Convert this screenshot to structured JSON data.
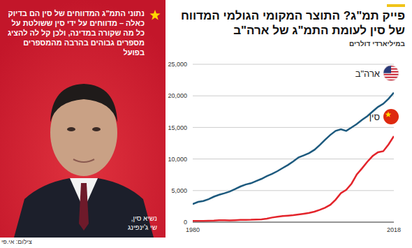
{
  "chart_data": {
    "type": "line",
    "title": "פייק תמ\"ג? התוצר המקומי הגולמי המדווח של סין לעומת התמ\"ג של ארה\"ב",
    "subtitle": "במיליארדי דולרים",
    "x": [
      1980,
      1981,
      1982,
      1983,
      1984,
      1985,
      1986,
      1987,
      1988,
      1989,
      1990,
      1991,
      1992,
      1993,
      1994,
      1995,
      1996,
      1997,
      1998,
      1999,
      2000,
      2001,
      2002,
      2003,
      2004,
      2005,
      2006,
      2007,
      2008,
      2009,
      2010,
      2011,
      2012,
      2013,
      2014,
      2015,
      2016,
      2017,
      2018
    ],
    "series": [
      {
        "name": "ארה\"ב",
        "color": "#1d5a7e",
        "values": [
          2857,
          3207,
          3343,
          3634,
          4037,
          4339,
          4579,
          4855,
          5236,
          5641,
          5963,
          6158,
          6520,
          6858,
          7287,
          7639,
          8073,
          8577,
          9062,
          9631,
          10252,
          10581,
          10936,
          11458,
          12213,
          13036,
          13814,
          14451,
          14712,
          14448,
          14992,
          15542,
          16197,
          16784,
          17527,
          18238,
          18745,
          19543,
          20500
        ]
      },
      {
        "name": "סין",
        "color": "#e3242b",
        "values": [
          191,
          196,
          205,
          230,
          260,
          309,
          300,
          273,
          312,
          348,
          361,
          383,
          427,
          445,
          564,
          734,
          864,
          962,
          1029,
          1094,
          1211,
          1339,
          1471,
          1660,
          1955,
          2286,
          2752,
          3552,
          4598,
          5110,
          6087,
          7552,
          8532,
          9570,
          10476,
          11062,
          11233,
          12310,
          13600
        ]
      }
    ],
    "xlim": [
      1980,
      2018
    ],
    "xticks": [
      1980,
      2018
    ],
    "ylim": [
      0,
      25000
    ],
    "yticks": [
      0,
      {
        "value": 5000,
        "label": "5,000"
      },
      {
        "value": 10000,
        "label": "10,000"
      },
      {
        "value": 15000,
        "label": "15,000"
      },
      {
        "value": 20000,
        "label": "20,000"
      },
      {
        "value": 25000,
        "label": "25,000"
      }
    ],
    "grid": true
  },
  "panel": {
    "text": "נתוני התמ\"ג המדווחים של סין הם בדיוק כאלה – מדווחים על ידי סין ששולטת על כל מה שקורה במדינה, ולכן קל לה להציג מספרים גבוהים בהרבה מהמספרים בפועל",
    "caption": [
      "נשיא סין,",
      "שי ג'ינפינג"
    ]
  },
  "credit": "צילום: אי.פי"
}
